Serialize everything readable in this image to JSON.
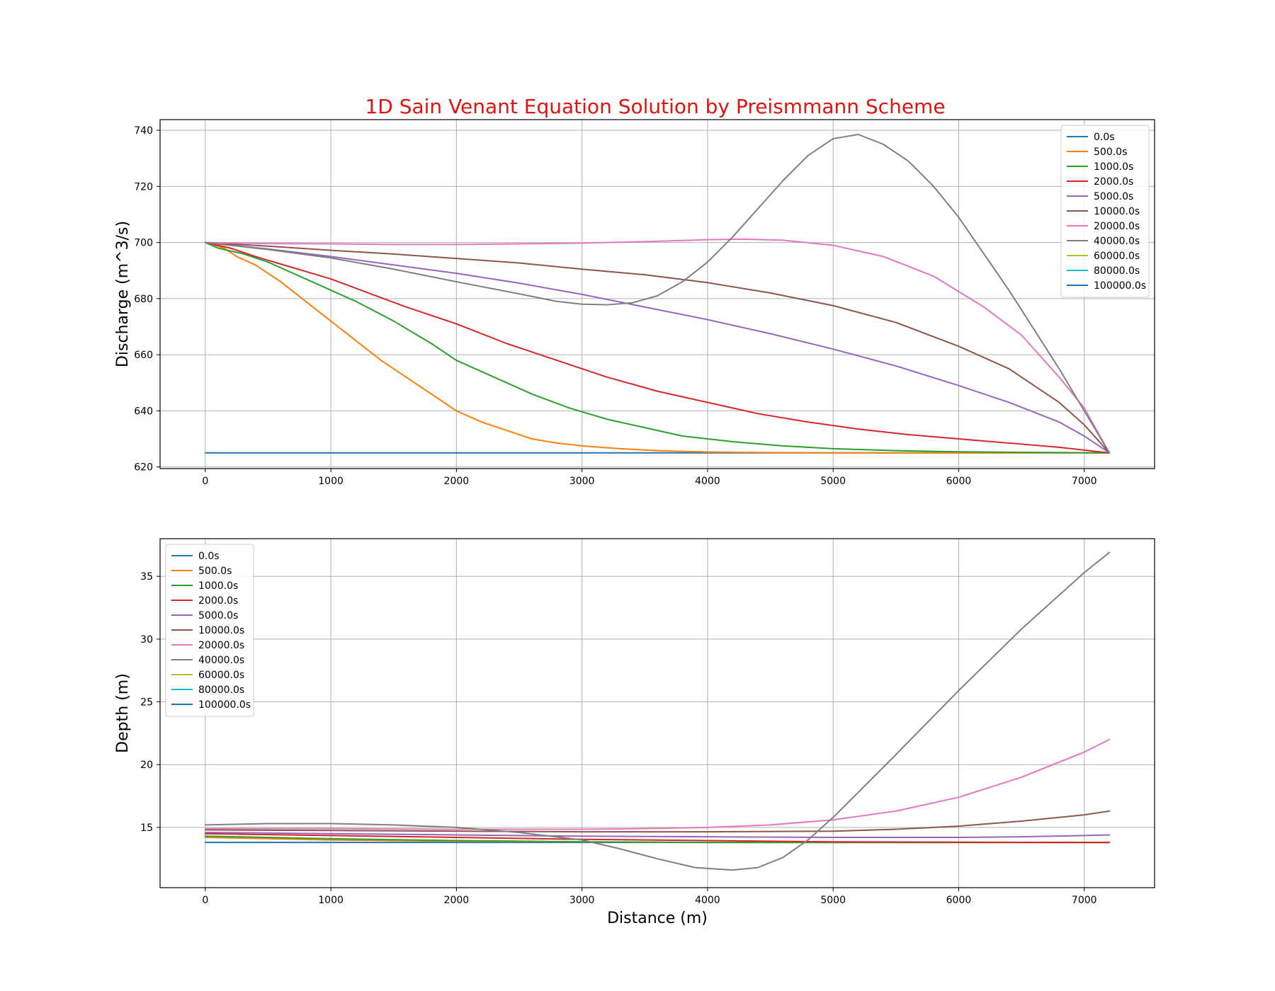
{
  "title": "1D Sain Venant Equation Solution by Preismmann Scheme",
  "title_color": "#e0140e",
  "series_colors": [
    "#1f77b4",
    "#ff7f0e",
    "#2ca02c",
    "#d62728",
    "#9467bd",
    "#8c564b",
    "#e377c2",
    "#7f7f7f",
    "#bcbd22",
    "#17becf",
    "#1f6fa8"
  ],
  "chart_data": [
    {
      "type": "line",
      "ylabel": "Discharge (m^3/s)",
      "xlabel": "",
      "xlim": [
        -360,
        7560
      ],
      "ylim": [
        619.4,
        743.8
      ],
      "xticks": [
        0,
        1000,
        2000,
        3000,
        4000,
        5000,
        6000,
        7000
      ],
      "yticks": [
        620,
        640,
        660,
        680,
        700,
        720,
        740
      ],
      "grid": true,
      "legend_position": "top-right",
      "series": [
        {
          "name": "0.0s",
          "x": [
            0,
            7200
          ],
          "y": [
            625,
            625
          ]
        },
        {
          "name": "500.0s",
          "x": [
            0,
            150,
            250,
            400,
            600,
            800,
            1000,
            1200,
            1400,
            1600,
            1800,
            2000,
            2200,
            2400,
            2600,
            2800,
            3000,
            3300,
            3600,
            4000,
            4500,
            5000,
            6000,
            7200
          ],
          "y": [
            700,
            698,
            695,
            692,
            686,
            679,
            672,
            665,
            658,
            652,
            646,
            640,
            636,
            633,
            630,
            628.5,
            627.5,
            626.5,
            625.8,
            625.3,
            625.1,
            625,
            625,
            625
          ]
        },
        {
          "name": "1000.0s",
          "x": [
            0,
            100,
            200,
            300,
            500,
            800,
            1000,
            1200,
            1500,
            1800,
            2000,
            2300,
            2600,
            2900,
            3200,
            3500,
            3800,
            4200,
            4600,
            5000,
            5500,
            6000,
            6500,
            7200
          ],
          "y": [
            700,
            698,
            697,
            696,
            693,
            687,
            683,
            679,
            672,
            664,
            658,
            652,
            646,
            641,
            637,
            634,
            631,
            629,
            627.5,
            626.5,
            625.8,
            625.4,
            625.2,
            625
          ]
        },
        {
          "name": "2000.0s",
          "x": [
            0,
            200,
            400,
            700,
            1000,
            1300,
            1600,
            2000,
            2400,
            2800,
            3200,
            3600,
            4000,
            4400,
            4800,
            5200,
            5600,
            6000,
            6400,
            6800,
            7200
          ],
          "y": [
            700,
            698,
            695,
            691,
            687,
            682,
            677,
            671,
            664,
            658,
            652,
            647,
            643,
            639,
            636,
            633.5,
            631.5,
            630,
            628.5,
            627,
            625
          ]
        },
        {
          "name": "5000.0s",
          "x": [
            0,
            500,
            1000,
            1500,
            2000,
            2500,
            3000,
            3500,
            4000,
            4500,
            5000,
            5500,
            6000,
            6400,
            6800,
            7000,
            7200
          ],
          "y": [
            700,
            697.7,
            695,
            692,
            689,
            685.5,
            681.5,
            677,
            672.5,
            667.5,
            662,
            656,
            649,
            643,
            636,
            631,
            625
          ]
        },
        {
          "name": "10000.0s",
          "x": [
            0,
            500,
            1000,
            1500,
            2000,
            2500,
            3000,
            3500,
            4000,
            4500,
            5000,
            5500,
            6000,
            6400,
            6800,
            7000,
            7200
          ],
          "y": [
            700,
            698.7,
            697.2,
            695.9,
            694.3,
            692.7,
            690.5,
            688.5,
            685.7,
            682,
            677.5,
            671.5,
            663,
            655,
            643,
            635,
            625
          ]
        },
        {
          "name": "20000.0s",
          "x": [
            0,
            500,
            1000,
            1500,
            2000,
            2500,
            3000,
            3500,
            4000,
            4300,
            4600,
            5000,
            5400,
            5800,
            6200,
            6500,
            6800,
            7000,
            7200
          ],
          "y": [
            700,
            699.6,
            699.5,
            699.3,
            699.3,
            699.5,
            699.8,
            700.3,
            701,
            701.2,
            700.8,
            699,
            695,
            688,
            677,
            667,
            652,
            641,
            625
          ]
        },
        {
          "name": "40000.0s",
          "x": [
            0,
            500,
            1000,
            1500,
            2000,
            2500,
            2800,
            3000,
            3200,
            3400,
            3600,
            3800,
            4000,
            4200,
            4400,
            4600,
            4800,
            5000,
            5200,
            5400,
            5600,
            5800,
            6000,
            6400,
            6800,
            7200
          ],
          "y": [
            700,
            697.5,
            694.5,
            690.5,
            686,
            681.7,
            679,
            678,
            677.8,
            678.5,
            681,
            686,
            693,
            702,
            712,
            722,
            731,
            737,
            738.5,
            735,
            729,
            720,
            709,
            683,
            655,
            625
          ]
        },
        {
          "name": "60000.0s",
          "x": [],
          "y": []
        },
        {
          "name": "80000.0s",
          "x": [],
          "y": []
        },
        {
          "name": "100000.0s",
          "x": [],
          "y": []
        }
      ]
    },
    {
      "type": "line",
      "ylabel": "Depth (m)",
      "xlabel": "Distance (m)",
      "xlim": [
        -360,
        7560
      ],
      "ylim": [
        10.2,
        38.0
      ],
      "xticks": [
        0,
        1000,
        2000,
        3000,
        4000,
        5000,
        6000,
        7000
      ],
      "yticks": [
        15,
        20,
        25,
        30,
        35
      ],
      "grid": true,
      "legend_position": "top-left",
      "series": [
        {
          "name": "0.0s",
          "x": [
            0,
            7200
          ],
          "y": [
            13.8,
            13.8
          ]
        },
        {
          "name": "500.0s",
          "x": [
            0,
            1000,
            2000,
            3000,
            4000,
            7200
          ],
          "y": [
            14.2,
            14.0,
            13.9,
            13.85,
            13.8,
            13.8
          ]
        },
        {
          "name": "1000.0s",
          "x": [
            0,
            1000,
            2000,
            3000,
            4000,
            7200
          ],
          "y": [
            14.3,
            14.1,
            13.95,
            13.85,
            13.8,
            13.8
          ]
        },
        {
          "name": "2000.0s",
          "x": [
            0,
            1000,
            2000,
            3000,
            4000,
            5000,
            6000,
            7200
          ],
          "y": [
            14.5,
            14.35,
            14.2,
            14.05,
            13.95,
            13.85,
            13.82,
            13.8
          ]
        },
        {
          "name": "5000.0s",
          "x": [
            0,
            1000,
            2000,
            3000,
            4000,
            5000,
            6000,
            6500,
            7000,
            7200
          ],
          "y": [
            14.6,
            14.5,
            14.4,
            14.3,
            14.25,
            14.2,
            14.2,
            14.25,
            14.35,
            14.4
          ]
        },
        {
          "name": "10000.0s",
          "x": [
            0,
            1000,
            2000,
            3000,
            4000,
            5000,
            5500,
            6000,
            6500,
            7000,
            7200
          ],
          "y": [
            14.8,
            14.75,
            14.7,
            14.65,
            14.65,
            14.7,
            14.85,
            15.1,
            15.5,
            16.0,
            16.3
          ]
        },
        {
          "name": "20000.0s",
          "x": [
            0,
            1000,
            2000,
            3000,
            3500,
            4000,
            4500,
            5000,
            5500,
            6000,
            6500,
            7000,
            7200
          ],
          "y": [
            14.9,
            14.9,
            14.85,
            14.85,
            14.9,
            15.0,
            15.2,
            15.6,
            16.3,
            17.4,
            19.0,
            21.0,
            22.0
          ]
        },
        {
          "name": "40000.0s",
          "x": [
            0,
            500,
            1000,
            1500,
            2000,
            2500,
            3000,
            3300,
            3600,
            3900,
            4200,
            4400,
            4600,
            4800,
            5000,
            5500,
            6000,
            6500,
            7000,
            7200
          ],
          "y": [
            15.2,
            15.3,
            15.3,
            15.2,
            15.0,
            14.6,
            14.0,
            13.3,
            12.5,
            11.8,
            11.6,
            11.8,
            12.6,
            14.0,
            15.8,
            20.8,
            25.9,
            30.8,
            35.3,
            36.9
          ]
        },
        {
          "name": "60000.0s",
          "x": [],
          "y": []
        },
        {
          "name": "80000.0s",
          "x": [],
          "y": []
        },
        {
          "name": "100000.0s",
          "x": [],
          "y": []
        }
      ]
    }
  ]
}
